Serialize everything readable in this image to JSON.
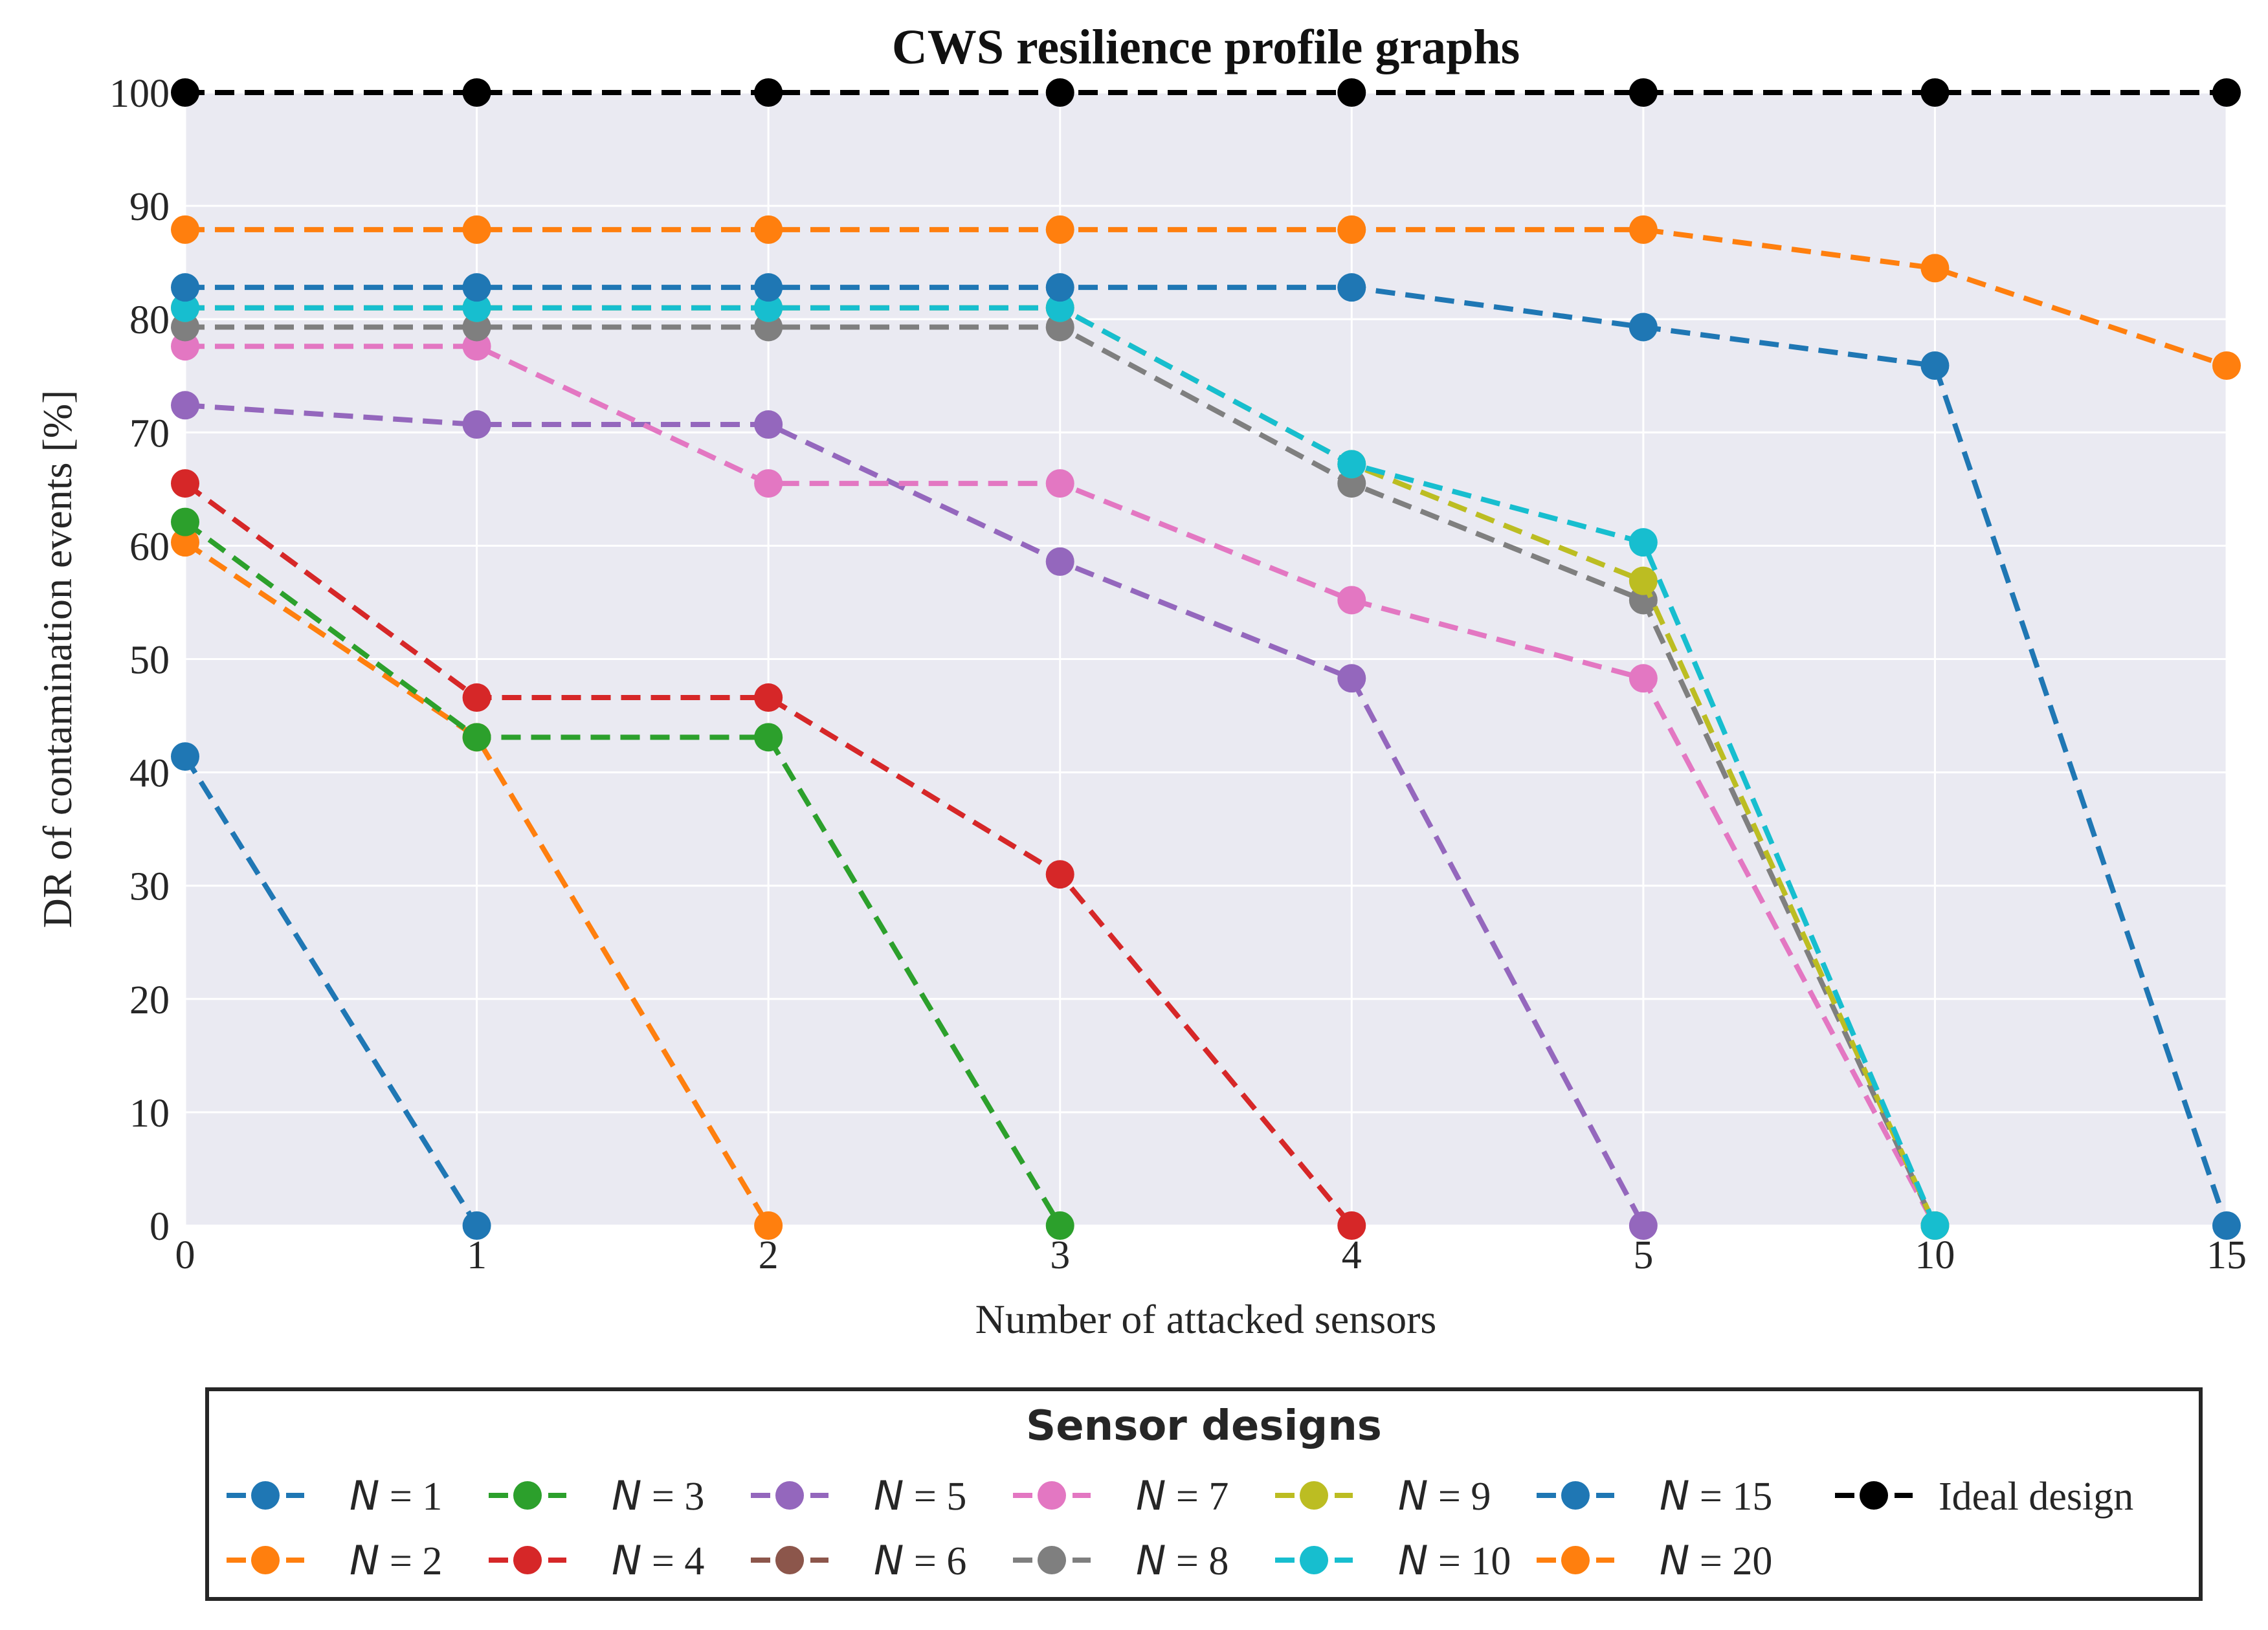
{
  "chart_data": {
    "type": "line",
    "title": "CWS resilience profile graphs",
    "xlabel": "Number of attacked sensors",
    "ylabel": "DR of contamination events [%]",
    "x_categories": [
      "0",
      "1",
      "2",
      "3",
      "4",
      "5",
      "10",
      "15"
    ],
    "y_ticks": [
      "0",
      "10",
      "20",
      "30",
      "40",
      "50",
      "60",
      "70",
      "80",
      "90",
      "100"
    ],
    "ylim": [
      0,
      100
    ],
    "grid": true,
    "legend": {
      "title": "Sensor designs",
      "placement": "below-plot"
    },
    "series": [
      {
        "name": "N = 1",
        "var": "N",
        "eq": "= 1",
        "color": "#1f77b4",
        "y": [
          41.4,
          0
        ]
      },
      {
        "name": "N = 2",
        "var": "N",
        "eq": "= 2",
        "color": "#ff7f0e",
        "y": [
          60.3,
          43.1,
          0
        ]
      },
      {
        "name": "N = 3",
        "var": "N",
        "eq": "= 3",
        "color": "#2ca02c",
        "y": [
          62.1,
          43.1,
          43.1,
          0
        ]
      },
      {
        "name": "N = 4",
        "var": "N",
        "eq": "= 4",
        "color": "#d62728",
        "y": [
          65.5,
          46.6,
          46.6,
          31.0,
          0
        ]
      },
      {
        "name": "N = 5",
        "var": "N",
        "eq": "= 5",
        "color": "#9467bd",
        "y": [
          72.4,
          70.7,
          70.7,
          58.6,
          48.3,
          0
        ]
      },
      {
        "name": "N = 6",
        "var": "N",
        "eq": "= 6",
        "color": "#8c564b",
        "y": []
      },
      {
        "name": "N = 7",
        "var": "N",
        "eq": "= 7",
        "color": "#e377c2",
        "y": [
          77.6,
          77.6,
          65.5,
          65.5,
          55.2,
          48.3,
          0
        ]
      },
      {
        "name": "N = 8",
        "var": "N",
        "eq": "= 8",
        "color": "#7f7f7f",
        "y": [
          79.3,
          79.3,
          79.3,
          79.3,
          65.5,
          55.2,
          0
        ]
      },
      {
        "name": "N = 9",
        "var": "N",
        "eq": "= 9",
        "color": "#bcbd22",
        "y": [
          81.0,
          81.0,
          81.0,
          81.0,
          67.2,
          56.9,
          0
        ]
      },
      {
        "name": "N = 10",
        "var": "N",
        "eq": "= 10",
        "color": "#17becf",
        "y": [
          81.0,
          81.0,
          81.0,
          81.0,
          67.2,
          60.3,
          0
        ]
      },
      {
        "name": "N = 15",
        "var": "N",
        "eq": "= 15",
        "color": "#1f77b4",
        "y": [
          82.8,
          82.8,
          82.8,
          82.8,
          82.8,
          79.3,
          75.9,
          0
        ]
      },
      {
        "name": "N = 20",
        "var": "N",
        "eq": "= 20",
        "color": "#ff7f0e",
        "y": [
          87.9,
          87.9,
          87.9,
          87.9,
          87.9,
          87.9,
          84.5,
          75.9
        ]
      },
      {
        "name": "Ideal design",
        "var": "",
        "eq": "Ideal design",
        "color": "#000000",
        "y": [
          100,
          100,
          100,
          100,
          100,
          100,
          100,
          100
        ]
      }
    ]
  }
}
